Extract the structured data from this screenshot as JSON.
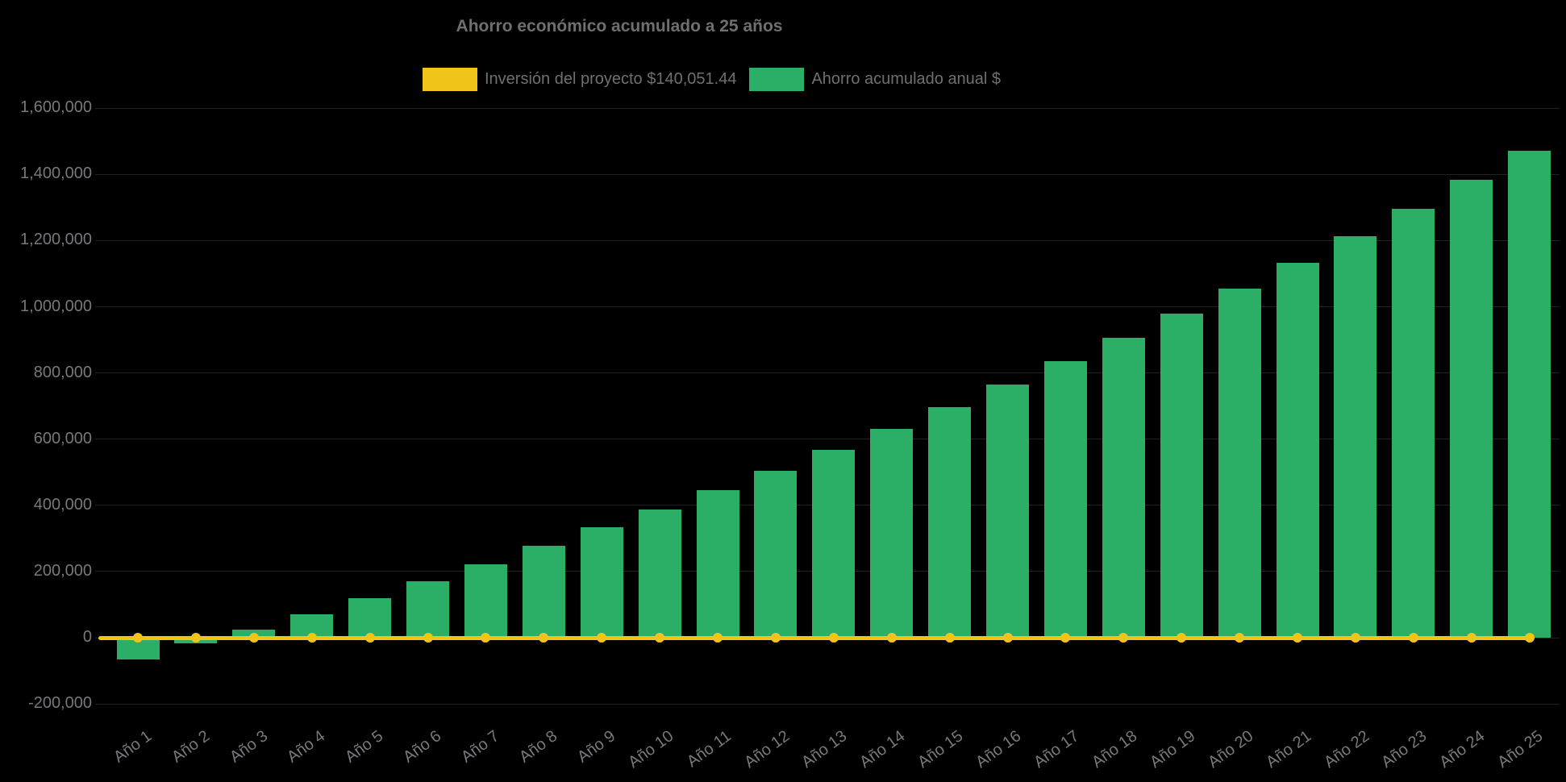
{
  "title": "Ahorro económico acumulado a 25 años",
  "colors": {
    "background": "#000000",
    "bar_green": "#2BAE65",
    "line_yellow": "#F0C419",
    "title_text": "#6E6F72",
    "axis_text": "#77787B"
  },
  "legend": [
    {
      "label": "Inversión del proyecto $140,051.44",
      "color": "#F0C419",
      "series_type": "line"
    },
    {
      "label": "Ahorro acumulado anual $",
      "color": "#2BAE65",
      "series_type": "bar"
    }
  ],
  "chart_data": {
    "type": "bar",
    "title": "Ahorro económico acumulado a 25 años",
    "xlabel": "",
    "ylabel": "",
    "categories": [
      "Año 1",
      "Año 2",
      "Año 3",
      "Año 4",
      "Año 5",
      "Año 6",
      "Año 7",
      "Año 8",
      "Año 9",
      "Año 10",
      "Año 11",
      "Año 12",
      "Año 13",
      "Año 14",
      "Año 15",
      "Año 16",
      "Año 17",
      "Año 18",
      "Año 19",
      "Año 20",
      "Año 21",
      "Año 22",
      "Año 23",
      "Año 24",
      "Año 25"
    ],
    "series": [
      {
        "name": "Ahorro acumulado anual $",
        "type": "bar",
        "color": "#2BAE65",
        "values": [
          -65000,
          -18000,
          25000,
          70000,
          120000,
          170000,
          222000,
          278000,
          333000,
          388000,
          447000,
          505000,
          567000,
          630000,
          697000,
          766000,
          835000,
          907000,
          980000,
          1055000,
          1132000,
          1213000,
          1296000,
          1383000,
          1471000
        ]
      },
      {
        "name": "Inversión del proyecto $140,051.44",
        "type": "line",
        "color": "#F0C419",
        "constant_value": 0,
        "note": "horizontal line with round markers drawn at y=0 across all 25 years"
      }
    ],
    "ylim": [
      -200000,
      1600000
    ],
    "ytick_step": 200000,
    "yticks": [
      1600000,
      1400000,
      1200000,
      1000000,
      800000,
      600000,
      400000,
      200000,
      0,
      -200000
    ],
    "ytick_labels": [
      "1,600,000",
      "1,400,000",
      "1,200,000",
      "1,000,000",
      "800,000",
      "600,000",
      "400,000",
      "200,000",
      "0",
      "-200,000"
    ],
    "grid": "faint horizontal gridlines",
    "legend_position": "top"
  }
}
